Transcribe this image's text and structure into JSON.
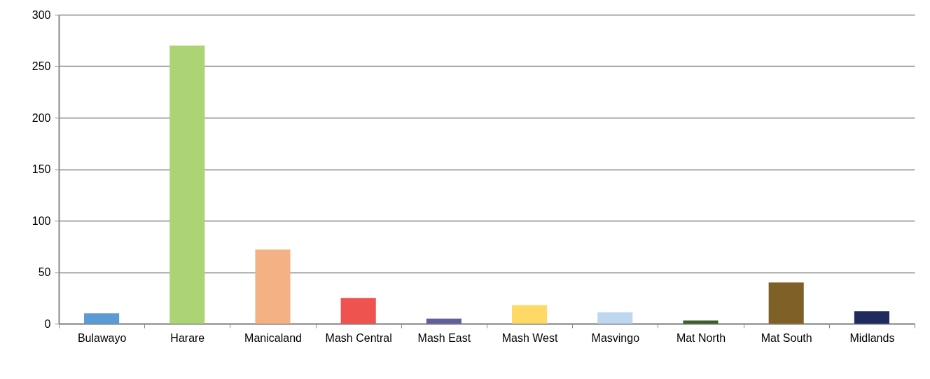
{
  "chart_data": {
    "type": "bar",
    "categories": [
      "Bulawayo",
      "Harare",
      "Manicaland",
      "Mash Central",
      "Mash East",
      "Mash West",
      "Masvingo",
      "Mat North",
      "Mat South",
      "Midlands"
    ],
    "values": [
      10,
      270,
      72,
      25,
      5,
      18,
      11,
      3,
      40,
      12
    ],
    "colors": [
      "#5b9bd5",
      "#acd475",
      "#f4b183",
      "#ef5350",
      "#5f5f9a",
      "#ffd966",
      "#bdd7ee",
      "#3b5e2b",
      "#7f6128",
      "#1f2a5e"
    ],
    "ylim": [
      0,
      300
    ],
    "yticks": [
      0,
      50,
      100,
      150,
      200,
      250,
      300
    ],
    "grid": "y",
    "legend": false
  }
}
